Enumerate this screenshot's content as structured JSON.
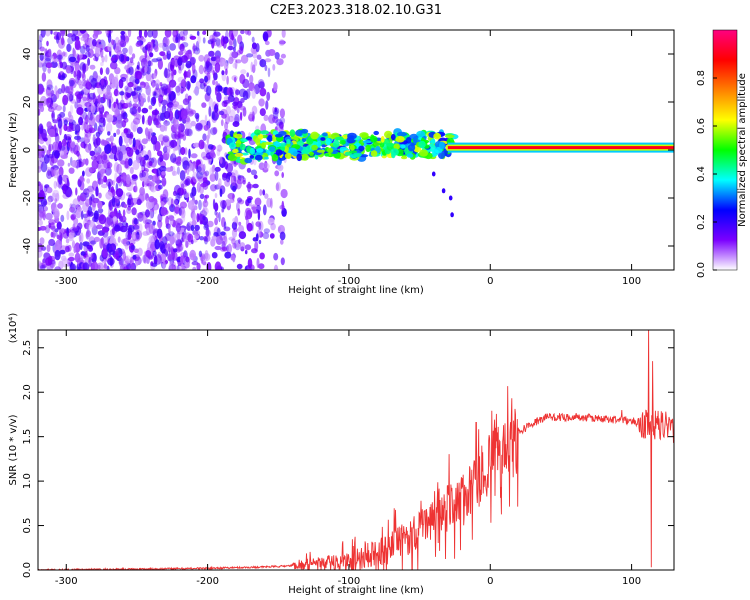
{
  "figure": {
    "title": "C2E3.2023.318.02.10.G31"
  },
  "chart_data": [
    {
      "type": "heatmap",
      "name": "spectrogram",
      "xlabel": "Height of straight line (km)",
      "ylabel": "Frequency (Hz)",
      "xlim": [
        -320,
        130
      ],
      "ylim": [
        -50,
        50
      ],
      "x_ticks": [
        -300,
        -200,
        -100,
        0,
        100
      ],
      "x_tick_labels": [
        "-300",
        "-200",
        "-100",
        "0",
        "100"
      ],
      "y_ticks": [
        -40,
        -20,
        0,
        20,
        40
      ],
      "y_tick_labels": [
        "-40",
        "-20",
        "0",
        "20",
        "40"
      ],
      "features": {
        "noise_region_x": [
          -320,
          -145
        ],
        "noise_amplitude": 0.1,
        "band_region_x": [
          -185,
          -25
        ],
        "band_freq_hz": 2,
        "band_amplitude": 0.45,
        "carrier_region_x": [
          -30,
          130
        ],
        "carrier_freq_hz": 1,
        "carrier_amplitude": 0.9,
        "trail_points": [
          {
            "x": -40,
            "y": -10
          },
          {
            "x": -33,
            "y": -17
          },
          {
            "x": -28,
            "y": -20
          },
          {
            "x": -27,
            "y": -27
          }
        ]
      },
      "colorbar": {
        "label": "Normalized spectral amplitude",
        "range": [
          0,
          1
        ],
        "ticks": [
          0.0,
          0.2,
          0.4,
          0.6,
          0.8
        ],
        "tick_labels": [
          "0.0",
          "0.2",
          "0.4",
          "0.6",
          "0.8"
        ],
        "colors": [
          "#ffffff",
          "#7b00ff",
          "#0000ff",
          "#00ffff",
          "#00ff00",
          "#ffff00",
          "#ff8000",
          "#ff0000",
          "#ff0080"
        ]
      }
    },
    {
      "type": "line",
      "name": "snr",
      "xlabel": "Height of straight line (km)",
      "ylabel": "SNR (10 * v/v)",
      "y_scale_label": "(x10⁴)",
      "xlim": [
        -320,
        130
      ],
      "ylim": [
        0,
        2.7
      ],
      "x_ticks": [
        -300,
        -200,
        -100,
        0,
        100
      ],
      "x_tick_labels": [
        "-300",
        "-200",
        "-100",
        "0",
        "100"
      ],
      "y_ticks": [
        0.0,
        0.5,
        1.0,
        1.5,
        2.0,
        2.5
      ],
      "y_tick_labels": [
        "0.0",
        "0.5",
        "1.0",
        "1.5",
        "2.0",
        "2.5"
      ],
      "color": "#ee3333",
      "series": [
        {
          "x": [
            -320,
            -250,
            -200,
            -170,
            -150,
            -130,
            -110,
            -100,
            -90,
            -80,
            -70,
            -60,
            -50,
            -40,
            -30,
            -20,
            -10,
            0,
            10,
            20,
            30,
            40,
            50,
            60,
            70,
            80,
            90,
            100,
            105,
            110,
            115,
            120,
            130
          ],
          "values": [
            0.0,
            0.01,
            0.02,
            0.03,
            0.04,
            0.06,
            0.08,
            0.1,
            0.14,
            0.2,
            0.25,
            0.35,
            0.45,
            0.6,
            0.7,
            0.8,
            0.95,
            1.2,
            1.4,
            1.55,
            1.65,
            1.72,
            1.72,
            1.72,
            1.71,
            1.7,
            1.69,
            1.68,
            1.66,
            1.65,
            1.64,
            1.62,
            1.6
          ]
        }
      ],
      "peaks": [
        {
          "x": -10,
          "value": 1.66
        },
        {
          "x": -6,
          "value": 1.4
        },
        {
          "x": 93,
          "value": 1.8
        },
        {
          "x": 112,
          "value": 2.75
        },
        {
          "x": 115,
          "value": 2.35
        },
        {
          "x": 114,
          "value": 0.03
        }
      ]
    }
  ]
}
